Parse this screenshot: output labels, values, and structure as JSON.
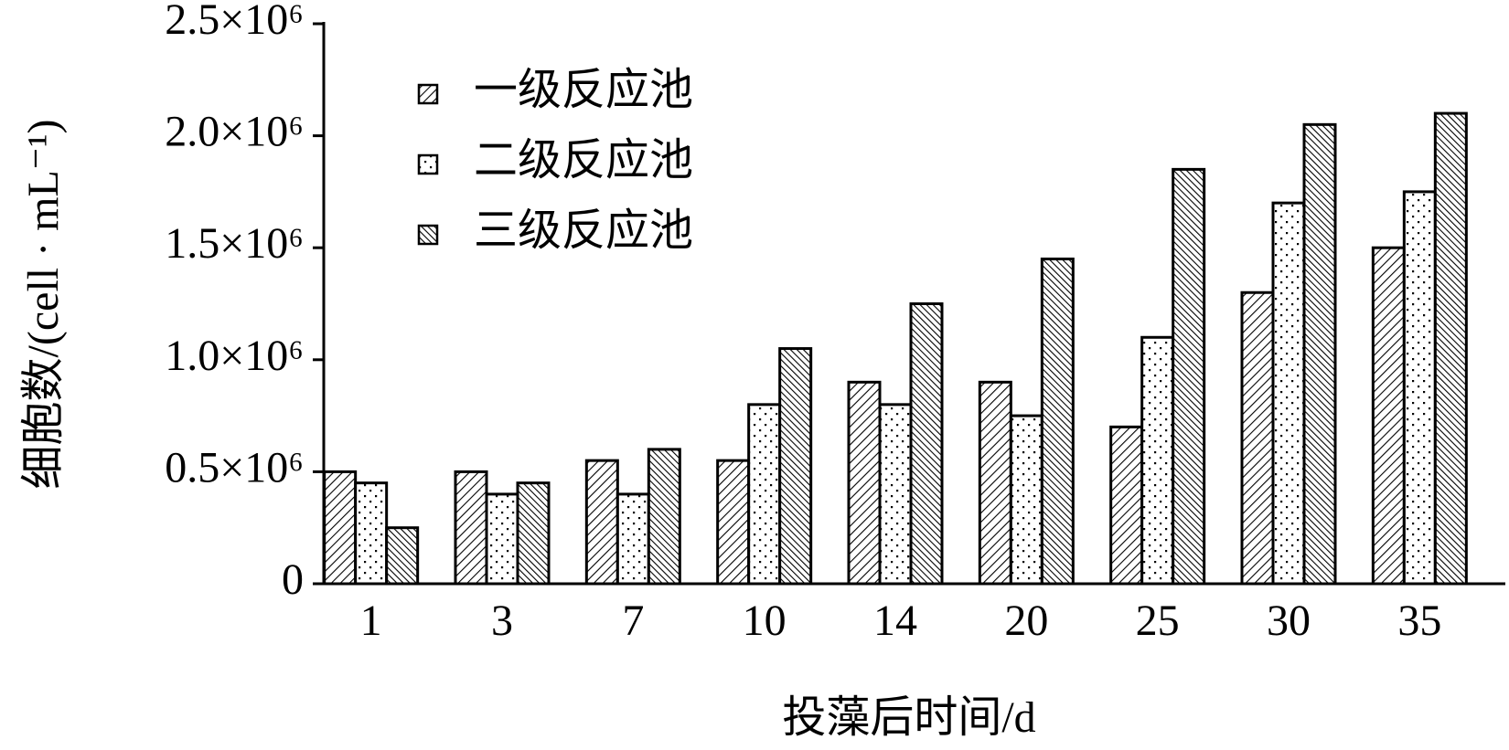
{
  "chart_data": {
    "type": "bar",
    "x_label": "投藻后时间/d",
    "y_label": "细胞数/(cell · mL⁻¹)",
    "categories": [
      "1",
      "3",
      "7",
      "10",
      "14",
      "20",
      "25",
      "30",
      "35"
    ],
    "series": [
      {
        "name": "一级反应池",
        "color": "#000000",
        "pattern": "diagonal",
        "values": [
          500000,
          500000,
          550000,
          550000,
          900000,
          900000,
          700000,
          1300000,
          1500000
        ]
      },
      {
        "name": "二级反应池",
        "color": "#000000",
        "pattern": "dots",
        "values": [
          450000,
          400000,
          400000,
          800000,
          800000,
          750000,
          1100000,
          1700000,
          1750000
        ]
      },
      {
        "name": "三级反应池",
        "color": "#000000",
        "pattern": "back-diagonal",
        "values": [
          250000,
          450000,
          600000,
          1050000,
          1250000,
          1450000,
          1850000,
          2050000,
          2100000
        ]
      }
    ],
    "ylim": [
      0,
      2500000
    ],
    "yticks": [
      0,
      {
        "value": 500000,
        "label": "0.5×10⁶"
      },
      {
        "value": 1000000,
        "label": "1.0×10⁶"
      },
      {
        "value": 1500000,
        "label": "1.5×10⁶"
      },
      {
        "value": 2000000,
        "label": "2.0×10⁶"
      },
      {
        "value": 2500000,
        "label": "2.5×10⁶"
      }
    ],
    "legend": "upper left"
  }
}
